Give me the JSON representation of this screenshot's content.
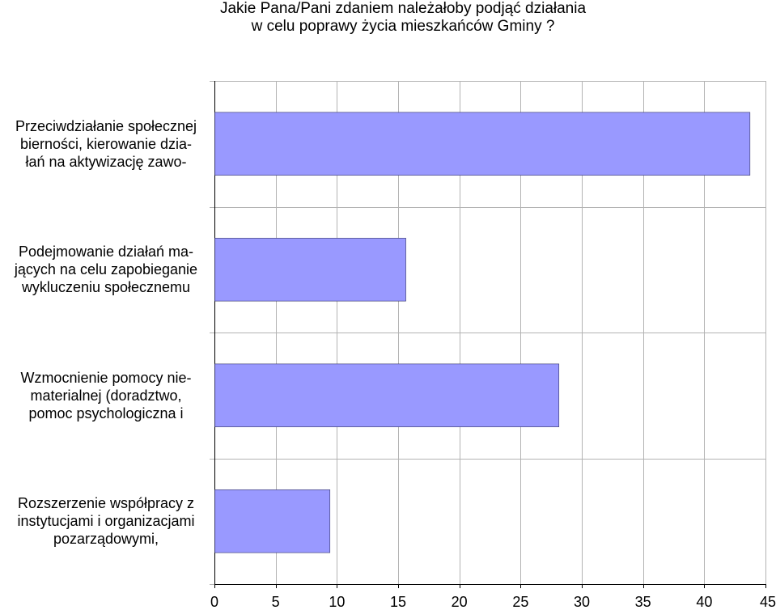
{
  "chart_data": {
    "type": "bar",
    "orientation": "horizontal",
    "title": [
      "Jakie Pana/Pani zdaniem należałoby podjąć działania",
      "w celu poprawy życia mieszkańców Gminy ?"
    ],
    "categories": [
      [
        "Przeciwdziałanie społecznej",
        "bierności, kierowanie dzia-",
        "łań na aktywizację zawo-"
      ],
      [
        "Podejmowanie działań ma-",
        "jących na celu zapobieganie",
        "wykluczeniu społecznemu"
      ],
      [
        "Wzmocnienie pomocy nie-",
        "materialnej (doradztwo,",
        "pomoc psychologiczna i"
      ],
      [
        "Rozszerzenie współpracy z",
        "instytucjami i organizacjami",
        "pozarządowymi,"
      ]
    ],
    "values": [
      43.7,
      15.6,
      28.1,
      9.4
    ],
    "xlim": [
      0,
      45
    ],
    "xticks": [
      "0",
      "5",
      "10",
      "15",
      "20",
      "25",
      "30",
      "35",
      "40",
      "45"
    ],
    "grid": true,
    "bar_color": "#9999ff",
    "grid_color": "#b3b3b3"
  }
}
